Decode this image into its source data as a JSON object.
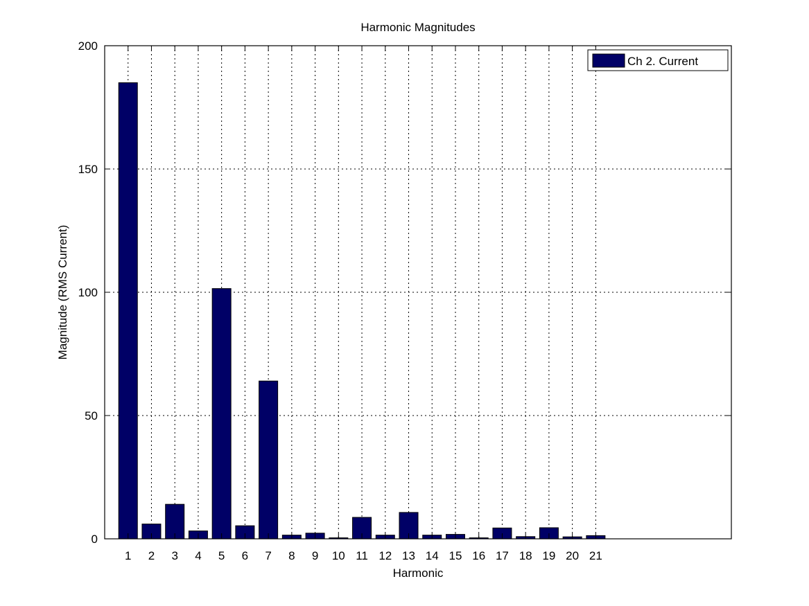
{
  "chart_data": {
    "type": "bar",
    "title": "Harmonic Magnitudes",
    "xlabel": "Harmonic",
    "ylabel": "Magnitude (RMS Current)",
    "categories": [
      "1",
      "2",
      "3",
      "4",
      "5",
      "6",
      "7",
      "8",
      "9",
      "10",
      "11",
      "12",
      "13",
      "14",
      "15",
      "16",
      "17",
      "18",
      "19",
      "20",
      "21"
    ],
    "series": [
      {
        "name": "Ch 2. Current",
        "color": "#000066",
        "values": [
          185,
          6,
          14,
          3.2,
          101.5,
          5.3,
          64,
          1.5,
          2.3,
          0.4,
          8.7,
          1.5,
          10.7,
          1.5,
          1.8,
          0.4,
          4.4,
          0.9,
          4.5,
          0.8,
          1.3
        ]
      }
    ],
    "xlim": [
      0,
      26.8
    ],
    "ylim": [
      0,
      200
    ],
    "yticks": [
      0,
      50,
      100,
      150,
      200
    ],
    "grid": true,
    "legend_position": "top-right"
  }
}
